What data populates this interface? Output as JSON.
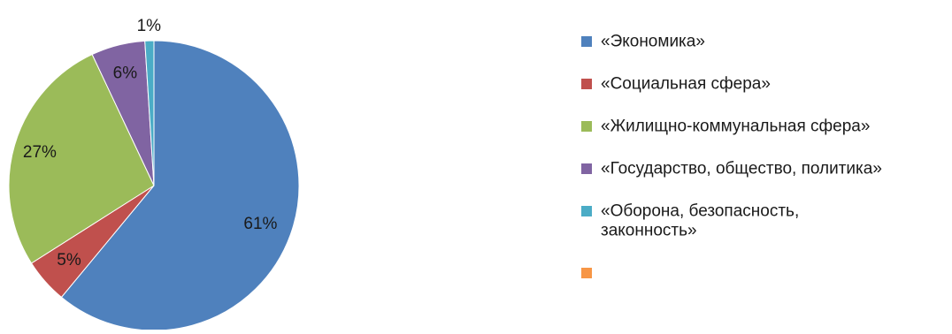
{
  "chart_data": {
    "type": "pie",
    "title": "",
    "slices": [
      {
        "label": "«Экономика»",
        "value": 61,
        "display": "61%",
        "color": "#4F81BD"
      },
      {
        "label": "«Социальная сфера»",
        "value": 5,
        "display": "5%",
        "color": "#C0504D"
      },
      {
        "label": " «Жилищно-коммунальная сфера»",
        "value": 27,
        "display": "27%",
        "color": "#9BBB59"
      },
      {
        "label": "«Государство, общество, политика»",
        "value": 6,
        "display": "6%",
        "color": "#8064A2"
      },
      {
        "label": "«Оборона, безопасность, законность»",
        "value": 1,
        "display": "1%",
        "color": "#4BACC6"
      }
    ],
    "legend": {
      "position": "right",
      "entries": [
        {
          "lines": [
            "«Экономика»"
          ],
          "color": "#4F81BD"
        },
        {
          "lines": [
            "«Социальная сфера»"
          ],
          "color": "#C0504D"
        },
        {
          "lines": [
            " «Жилищно-коммунальная сфера»"
          ],
          "color": "#9BBB59"
        },
        {
          "lines": [
            "«Государство, общество, политика»"
          ],
          "color": "#8064A2"
        },
        {
          "lines": [
            "«Оборона, безопасность,",
            "законность»"
          ],
          "color": "#4BACC6"
        },
        {
          "lines": [
            ""
          ],
          "color": "#F79646"
        }
      ]
    }
  }
}
